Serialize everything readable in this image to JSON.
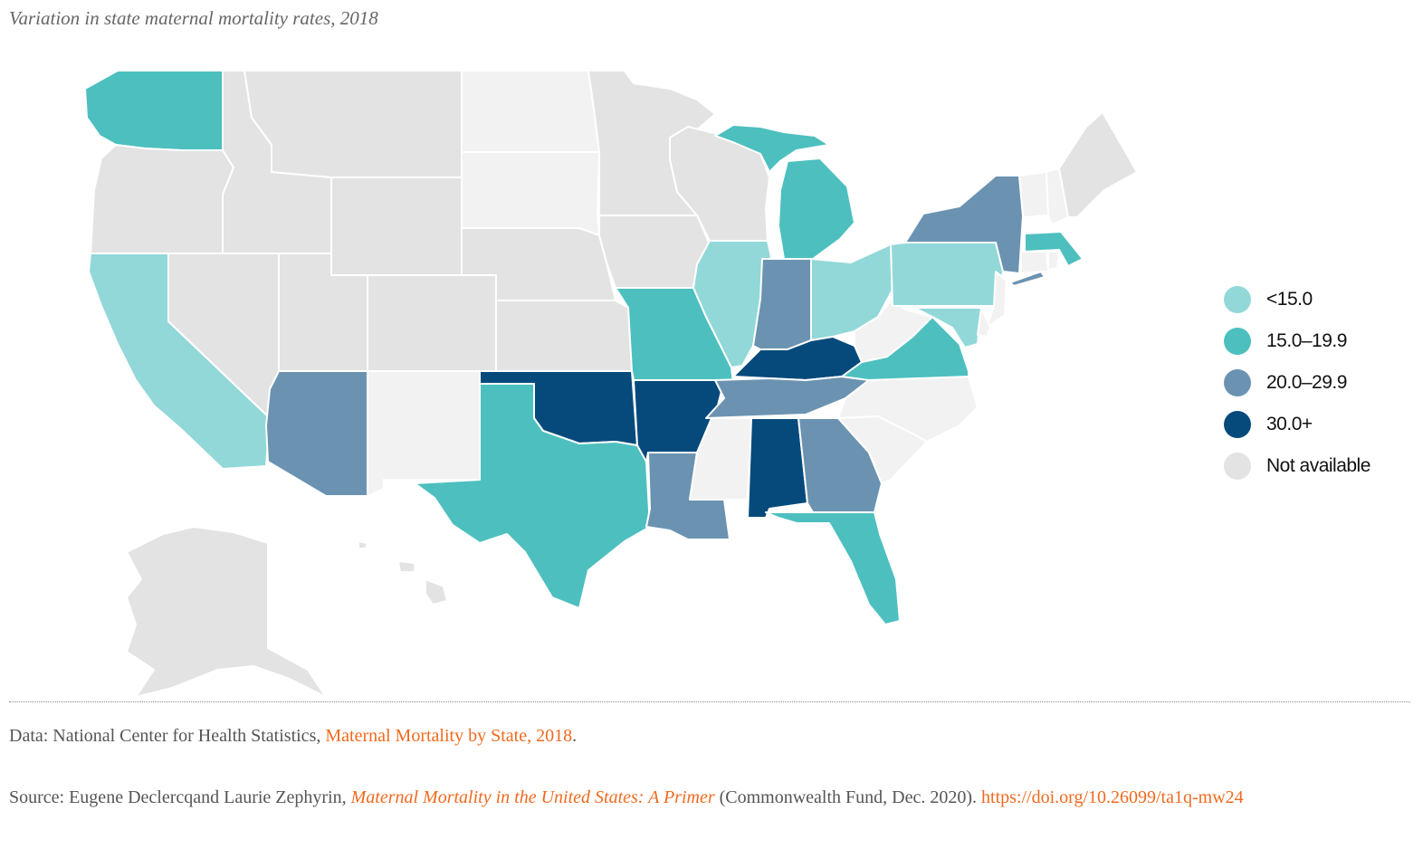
{
  "title": "Variation in state maternal mortality rates, 2018",
  "legend": [
    {
      "key": "lt15",
      "label": "<15.0",
      "color": "#92d8d8"
    },
    {
      "key": "15to20",
      "label": "15.0–19.9",
      "color": "#4dbfbf"
    },
    {
      "key": "20to30",
      "label": "20.0–29.9",
      "color": "#6b93b1"
    },
    {
      "key": "30plus",
      "label": "30.0+",
      "color": "#064a7c"
    },
    {
      "key": "na",
      "label": "Not available",
      "color": "#e3e3e3"
    }
  ],
  "na_light_color": "#f2f2f2",
  "states": {
    "CA": "lt15",
    "IL": "lt15",
    "OH": "lt15",
    "PA": "lt15",
    "MD": "lt15",
    "WA": "15to20",
    "MI": "15to20",
    "MO": "15to20",
    "TX": "15to20",
    "VA": "15to20",
    "FL": "15to20",
    "MA": "15to20",
    "NY": "20to30",
    "IN": "20to30",
    "AZ": "20to30",
    "TN": "20to30",
    "LA": "20to30",
    "GA": "20to30",
    "KY": "30plus",
    "OK": "30plus",
    "AR": "30plus",
    "AL": "30plus"
  },
  "data_note": {
    "prefix": "Data: National Center for Health Statistics, ",
    "link": "Maternal Mortality by State, 2018",
    "suffix": "."
  },
  "source_note": {
    "prefix": "Source: Eugene Declercqand Laurie Zephyrin, ",
    "title": "Maternal Mortality in the United States: A Primer",
    "middle": " (Commonwealth Fund, Dec. 2020). ",
    "doi": "https://doi.org/10.26099/ta1q-mw24"
  }
}
